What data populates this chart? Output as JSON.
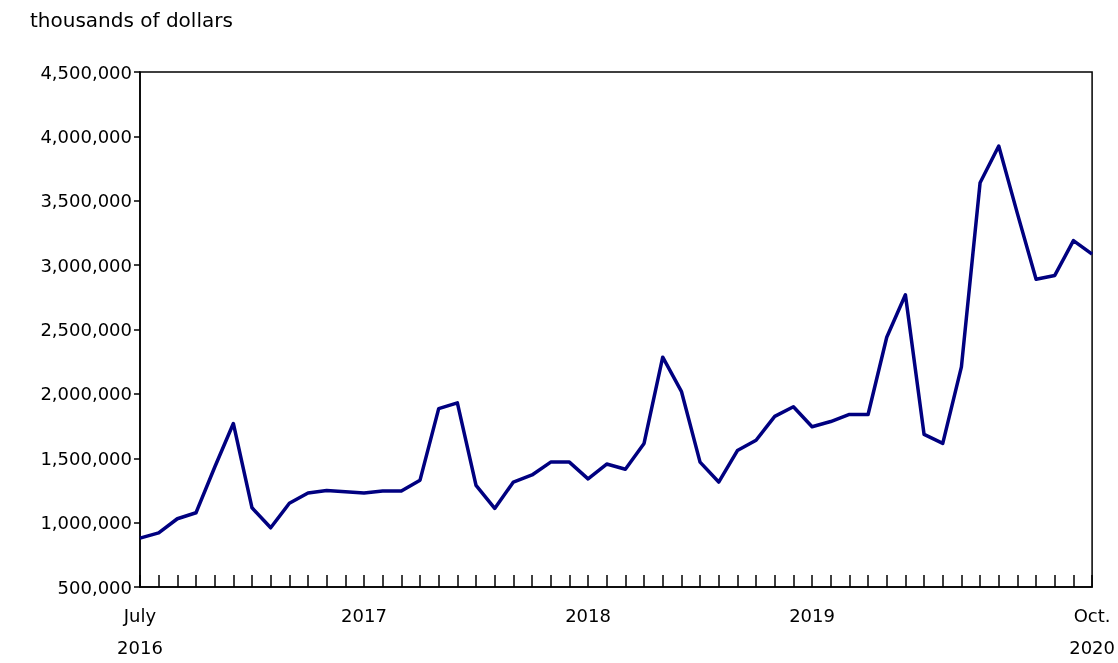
{
  "chart_data": {
    "type": "line",
    "ylabel": "thousands of dollars",
    "x": [
      "2016-07",
      "2016-08",
      "2016-09",
      "2016-10",
      "2016-11",
      "2016-12",
      "2017-01",
      "2017-02",
      "2017-03",
      "2017-04",
      "2017-05",
      "2017-06",
      "2017-07",
      "2017-08",
      "2017-09",
      "2017-10",
      "2017-11",
      "2017-12",
      "2018-01",
      "2018-02",
      "2018-03",
      "2018-04",
      "2018-05",
      "2018-06",
      "2018-07",
      "2018-08",
      "2018-09",
      "2018-10",
      "2018-11",
      "2018-12",
      "2019-01",
      "2019-02",
      "2019-03",
      "2019-04",
      "2019-05",
      "2019-06",
      "2019-07",
      "2019-08",
      "2019-09",
      "2019-10",
      "2019-11",
      "2019-12",
      "2020-01",
      "2020-02",
      "2020-03",
      "2020-04",
      "2020-05",
      "2020-06",
      "2020-07",
      "2020-08",
      "2020-09",
      "2020-10"
    ],
    "series": [
      {
        "color": "#000080",
        "values": [
          880000,
          920000,
          1030000,
          1077000,
          1430000,
          1770000,
          1115000,
          960000,
          1150000,
          1230000,
          1250000,
          1240000,
          1230000,
          1245000,
          1245000,
          1330000,
          1885000,
          1930000,
          1290000,
          1110000,
          1315000,
          1370000,
          1470000,
          1470000,
          1340000,
          1455000,
          1415000,
          1615000,
          2285000,
          2020000,
          1470000,
          1315000,
          1560000,
          1640000,
          1825000,
          1900000,
          1745000,
          1785000,
          1840000,
          1840000,
          2440000,
          2770000,
          1685000,
          1615000,
          2210000,
          3640000,
          3925000,
          3400000,
          2890000,
          2920000,
          3190000,
          3085000
        ]
      }
    ],
    "xlim": [
      "2016-07",
      "2020-10"
    ],
    "xticks": [
      {
        "value": "2016-07",
        "label": "July\n2016"
      },
      {
        "value": "2016-08",
        "label": null
      },
      {
        "value": "2016-09",
        "label": null
      },
      {
        "value": "2016-10",
        "label": null
      },
      {
        "value": "2016-11",
        "label": null
      },
      {
        "value": "2016-12",
        "label": null
      },
      {
        "value": "2017-01",
        "label": null
      },
      {
        "value": "2017-02",
        "label": null
      },
      {
        "value": "2017-03",
        "label": null
      },
      {
        "value": "2017-04",
        "label": null
      },
      {
        "value": "2017-05",
        "label": null
      },
      {
        "value": "2017-06",
        "label": null
      },
      {
        "value": "2017-07",
        "label": "2017"
      },
      {
        "value": "2017-08",
        "label": null
      },
      {
        "value": "2017-09",
        "label": null
      },
      {
        "value": "2017-10",
        "label": null
      },
      {
        "value": "2017-11",
        "label": null
      },
      {
        "value": "2017-12",
        "label": null
      },
      {
        "value": "2018-01",
        "label": null
      },
      {
        "value": "2018-02",
        "label": null
      },
      {
        "value": "2018-03",
        "label": null
      },
      {
        "value": "2018-04",
        "label": null
      },
      {
        "value": "2018-05",
        "label": null
      },
      {
        "value": "2018-06",
        "label": null
      },
      {
        "value": "2018-07",
        "label": "2018"
      },
      {
        "value": "2018-08",
        "label": null
      },
      {
        "value": "2018-09",
        "label": null
      },
      {
        "value": "2018-10",
        "label": null
      },
      {
        "value": "2018-11",
        "label": null
      },
      {
        "value": "2018-12",
        "label": null
      },
      {
        "value": "2019-01",
        "label": null
      },
      {
        "value": "2019-02",
        "label": null
      },
      {
        "value": "2019-03",
        "label": null
      },
      {
        "value": "2019-04",
        "label": null
      },
      {
        "value": "2019-05",
        "label": null
      },
      {
        "value": "2019-06",
        "label": null
      },
      {
        "value": "2019-07",
        "label": "2019"
      },
      {
        "value": "2019-08",
        "label": null
      },
      {
        "value": "2019-09",
        "label": null
      },
      {
        "value": "2019-10",
        "label": null
      },
      {
        "value": "2019-11",
        "label": null
      },
      {
        "value": "2019-12",
        "label": null
      },
      {
        "value": "2020-01",
        "label": null
      },
      {
        "value": "2020-02",
        "label": null
      },
      {
        "value": "2020-03",
        "label": null
      },
      {
        "value": "2020-04",
        "label": null
      },
      {
        "value": "2020-05",
        "label": null
      },
      {
        "value": "2020-06",
        "label": null
      },
      {
        "value": "2020-07",
        "label": null
      },
      {
        "value": "2020-08",
        "label": null
      },
      {
        "value": "2020-09",
        "label": null
      },
      {
        "value": "2020-10",
        "label": "Oct.\n2020"
      }
    ],
    "ylim": [
      500000,
      4500000
    ],
    "yticks": [
      {
        "value": 500000,
        "label": "500,000"
      },
      {
        "value": 1000000,
        "label": "1,000,000"
      },
      {
        "value": 1500000,
        "label": "1,500,000"
      },
      {
        "value": 2000000,
        "label": "2,000,000"
      },
      {
        "value": 2500000,
        "label": "2,500,000"
      },
      {
        "value": 3000000,
        "label": "3,000,000"
      },
      {
        "value": 3500000,
        "label": "3,500,000"
      },
      {
        "value": 4000000,
        "label": "4,000,000"
      },
      {
        "value": 4500000,
        "label": "4,500,000"
      }
    ],
    "grid": false,
    "marker": "none",
    "line_style": "solid"
  }
}
